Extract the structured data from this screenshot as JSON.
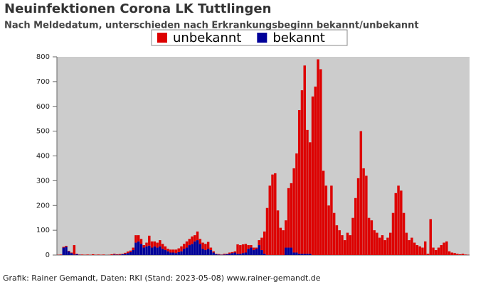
{
  "chart_data": {
    "type": "stacked_bar",
    "title": "Neuinfektionen Corona LK Tuttlingen",
    "subtitle": "Nach Meldedatum, unterschieden nach Erkrankungsbeginn bekannt/unbekannt",
    "footer": "Grafik: Rainer Gemandt, Daten: RKI (Stand: 2023-05-08) www.rainer-gemandt.de",
    "legend_position": "top",
    "grid": false,
    "ylim": [
      0,
      800
    ],
    "yticks": [
      0,
      100,
      200,
      300,
      400,
      500,
      600,
      700,
      800
    ],
    "categories": [
      null,
      null,
      null,
      null,
      null,
      null,
      null,
      null,
      null,
      null,
      null,
      null,
      null,
      null,
      null,
      null,
      null,
      null,
      null,
      null,
      null,
      null,
      null,
      null,
      null,
      null,
      null,
      null,
      null,
      null,
      null,
      null,
      null,
      null,
      null,
      null,
      null,
      null,
      null,
      null,
      null,
      null,
      null,
      null,
      null,
      null,
      null,
      null,
      null,
      null,
      null,
      null,
      null,
      null,
      null,
      null,
      null,
      null,
      null,
      null,
      null,
      null,
      null,
      null,
      null,
      null,
      null,
      null,
      null,
      null,
      null,
      null,
      null,
      null,
      null,
      null,
      null,
      null,
      null,
      null,
      null,
      null,
      null,
      null,
      null,
      null,
      null,
      null,
      null,
      null,
      null,
      null,
      null,
      null,
      null,
      null,
      null,
      null,
      null,
      null,
      null,
      null,
      null,
      null,
      null,
      null,
      null,
      null,
      null,
      null,
      null,
      null,
      null,
      null,
      null,
      null,
      null,
      null,
      null,
      null,
      null,
      null,
      null,
      null,
      null,
      null,
      null,
      null,
      null,
      null,
      null,
      null,
      null,
      null,
      null,
      null,
      null,
      null,
      null,
      null,
      null,
      null,
      null,
      null,
      null,
      null,
      null,
      null,
      null,
      null,
      null,
      null,
      null,
      null
    ],
    "series": [
      {
        "name": "bekannt",
        "color": "#000099",
        "values": [
          0,
          0,
          30,
          33,
          15,
          8,
          2,
          3,
          1,
          0,
          0,
          0,
          0,
          0,
          0,
          0,
          0,
          0,
          0,
          0,
          0,
          2,
          1,
          1,
          3,
          5,
          8,
          12,
          20,
          50,
          55,
          45,
          30,
          35,
          38,
          30,
          35,
          30,
          35,
          25,
          20,
          15,
          10,
          10,
          8,
          12,
          15,
          25,
          30,
          40,
          45,
          55,
          60,
          45,
          25,
          20,
          25,
          20,
          10,
          3,
          2,
          1,
          2,
          3,
          5,
          8,
          10,
          5,
          5,
          8,
          10,
          25,
          30,
          20,
          25,
          40,
          20,
          5,
          0,
          0,
          0,
          0,
          0,
          0,
          0,
          30,
          30,
          30,
          10,
          10,
          5,
          5,
          5,
          5,
          5,
          0,
          0,
          0,
          0,
          0,
          0,
          0,
          0,
          0,
          0,
          0,
          0,
          0,
          0,
          0,
          0,
          0,
          0,
          0,
          0,
          0,
          0,
          0,
          0,
          0,
          0,
          0,
          0,
          0,
          0,
          0,
          0,
          0,
          0,
          0,
          0,
          0,
          0,
          0,
          0,
          0,
          0,
          0,
          0,
          0,
          0,
          0,
          0,
          0,
          0,
          0,
          0,
          0,
          0,
          0,
          0,
          0,
          0,
          0
        ]
      },
      {
        "name": "unbekannt",
        "color": "#dd0000",
        "values": [
          1,
          2,
          3,
          4,
          2,
          2,
          38,
          2,
          1,
          2,
          1,
          2,
          1,
          3,
          1,
          2,
          1,
          2,
          0,
          1,
          3,
          3,
          2,
          3,
          2,
          4,
          6,
          6,
          10,
          30,
          25,
          20,
          10,
          15,
          40,
          25,
          20,
          20,
          25,
          20,
          15,
          10,
          12,
          12,
          14,
          15,
          20,
          20,
          25,
          25,
          30,
          25,
          35,
          20,
          25,
          25,
          28,
          10,
          5,
          2,
          2,
          1,
          3,
          2,
          5,
          4,
          5,
          38,
          35,
          35,
          35,
          15,
          10,
          10,
          5,
          20,
          50,
          90,
          190,
          280,
          325,
          330,
          180,
          110,
          100,
          110,
          240,
          260,
          340,
          400,
          580,
          660,
          760,
          500,
          450,
          640,
          680,
          790,
          750,
          340,
          280,
          200,
          280,
          170,
          120,
          100,
          80,
          60,
          90,
          80,
          150,
          230,
          310,
          500,
          350,
          320,
          150,
          140,
          100,
          90,
          70,
          80,
          60,
          70,
          90,
          170,
          250,
          280,
          260,
          170,
          90,
          60,
          70,
          50,
          40,
          35,
          30,
          55,
          5,
          145,
          30,
          20,
          30,
          40,
          50,
          55,
          15,
          10,
          8,
          5,
          3,
          5,
          2,
          1
        ]
      }
    ]
  }
}
